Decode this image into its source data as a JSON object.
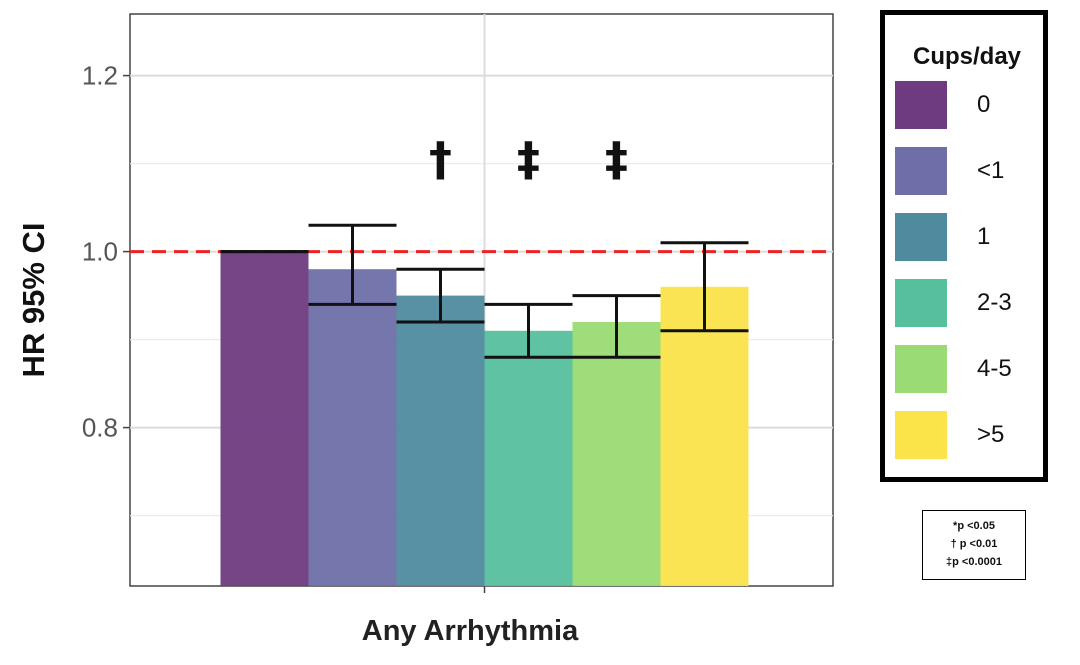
{
  "chart_data": {
    "type": "bar",
    "categories": [
      "Any Arrhythmia"
    ],
    "xlabel": "Any Arrhythmia",
    "ylabel": "HR 95% CI",
    "ylim": [
      0.62,
      1.27
    ],
    "yticks": [
      "0.8",
      "1.0",
      "1.2"
    ],
    "ytick_values": [
      0.8,
      1.0,
      1.2
    ],
    "reference_line": 1.0,
    "grid": true,
    "legend_position": "right",
    "legend_title": "Cups/day",
    "series": [
      {
        "name": "0",
        "value": 1.0,
        "ci": [
          1.0,
          1.0
        ],
        "color": "#6e3b80",
        "significance": ""
      },
      {
        "name": "<1",
        "value": 0.98,
        "ci": [
          0.94,
          1.03
        ],
        "color": "#6e6fa8",
        "significance": ""
      },
      {
        "name": "1",
        "value": 0.95,
        "ci": [
          0.92,
          0.98
        ],
        "color": "#4f8a9f",
        "significance": "†"
      },
      {
        "name": "2-3",
        "value": 0.91,
        "ci": [
          0.88,
          0.94
        ],
        "color": "#55bf9e",
        "significance": "‡"
      },
      {
        "name": "4-5",
        "value": 0.92,
        "ci": [
          0.88,
          0.95
        ],
        "color": "#9adb73",
        "significance": "‡"
      },
      {
        "name": ">5",
        "value": 0.96,
        "ci": [
          0.91,
          1.01
        ],
        "color": "#fbe34a",
        "significance": ""
      }
    ],
    "pvalue_notes": [
      "*p <0.05",
      "† p <0.01",
      "‡p <0.0001"
    ]
  }
}
